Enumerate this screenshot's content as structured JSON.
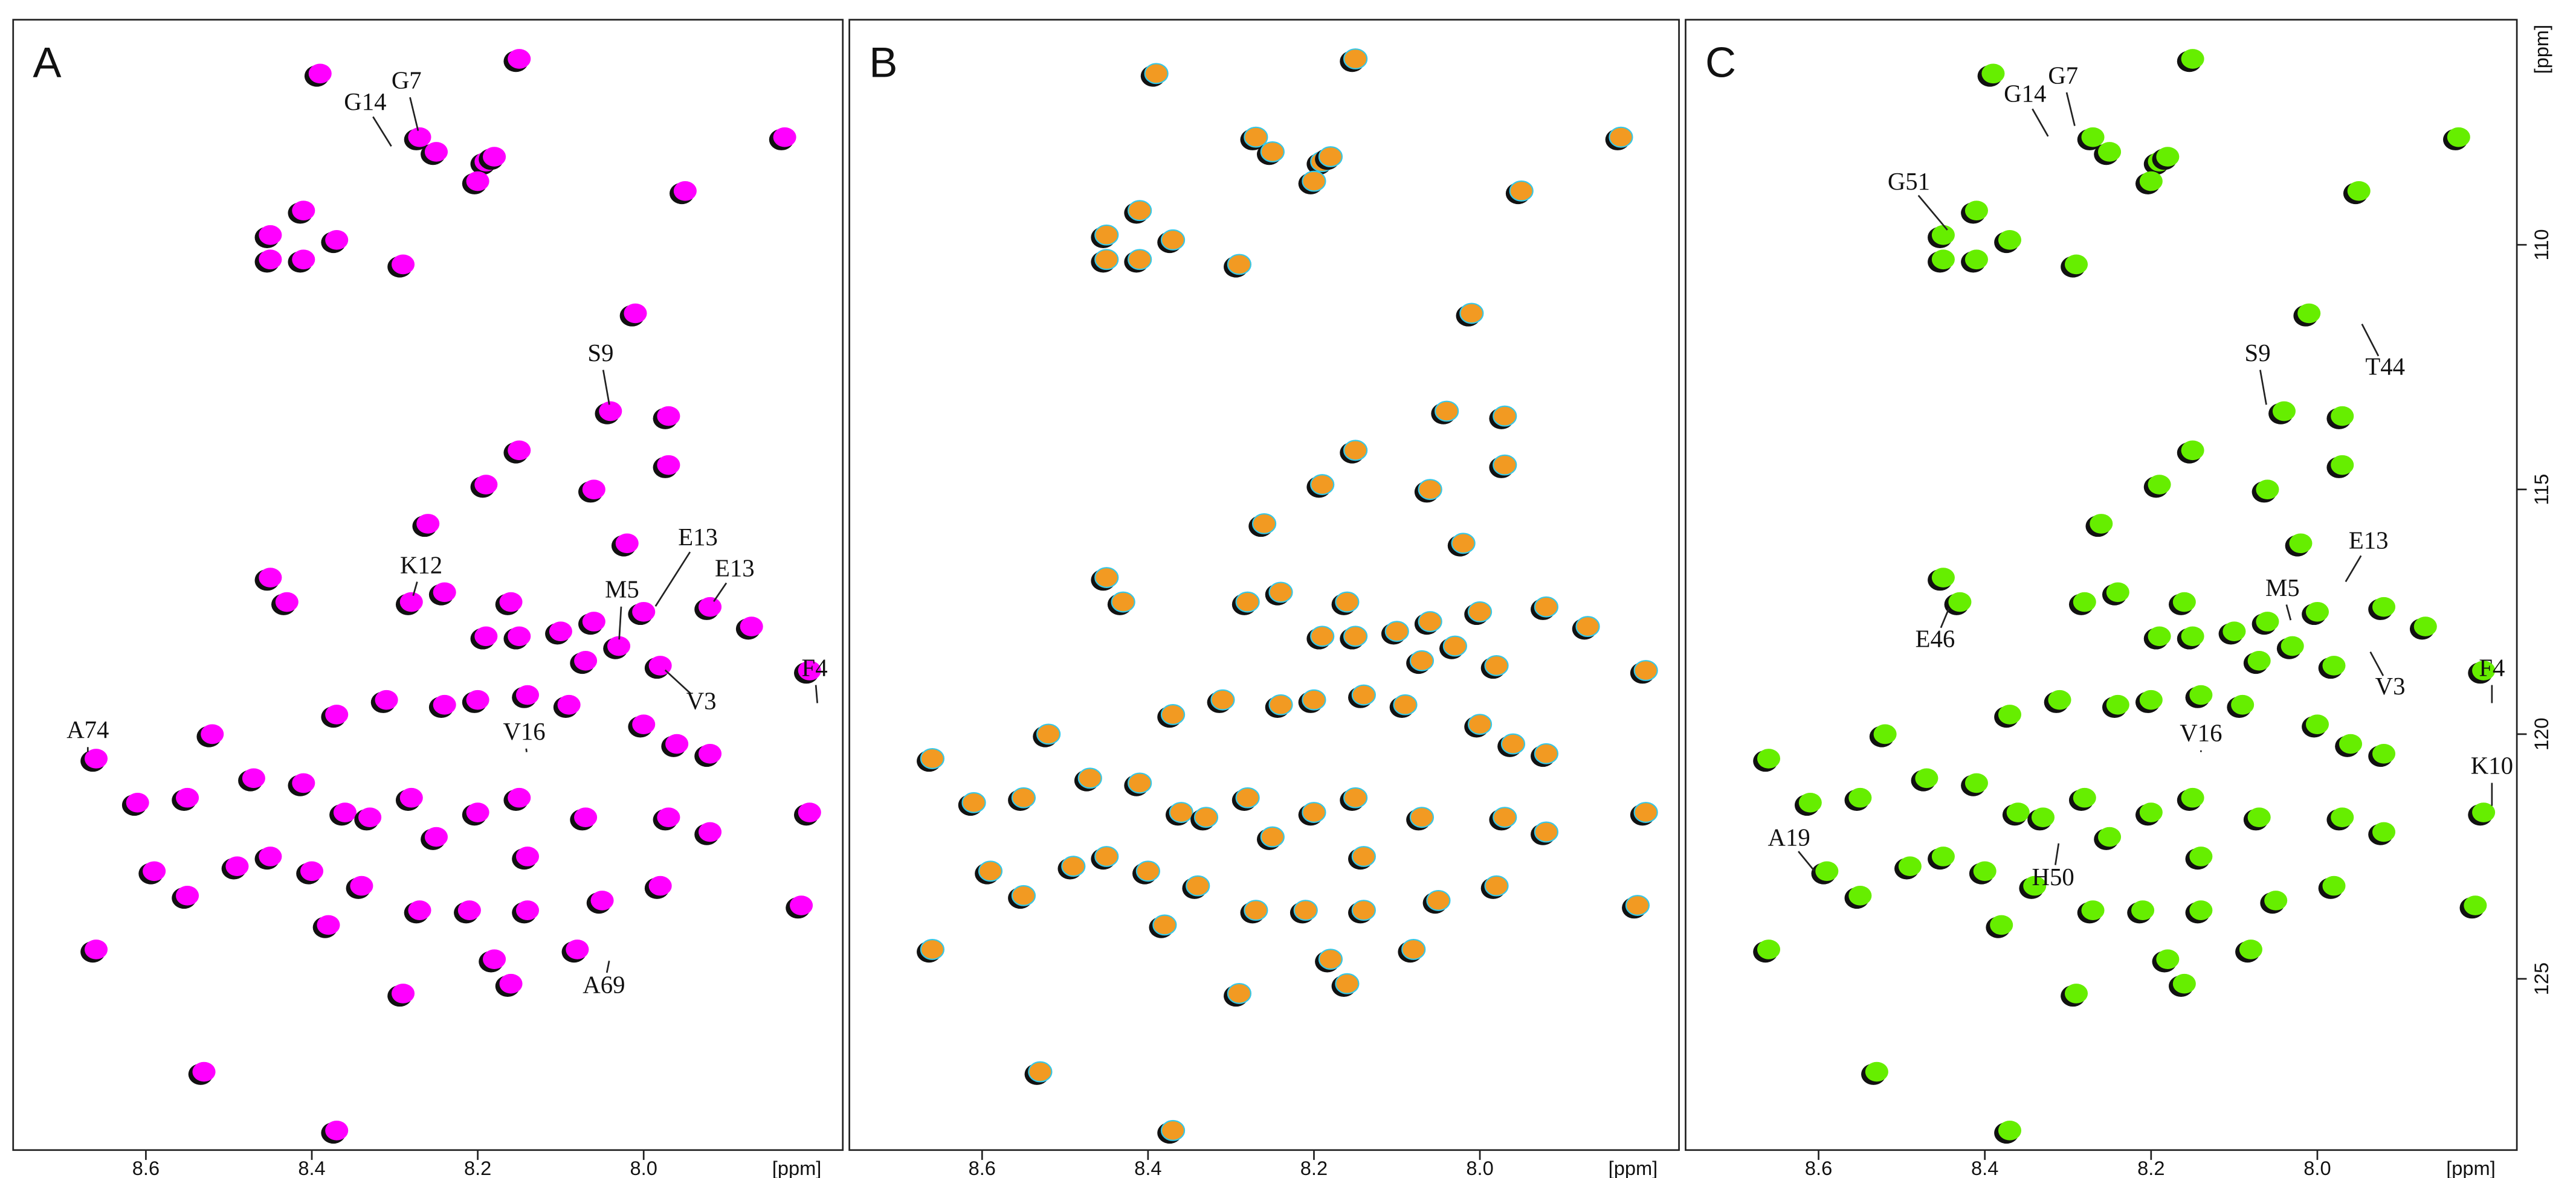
{
  "chart_data": [
    {
      "type": "scatter",
      "title": "A",
      "xlabel": "[ppm]",
      "color": "#ff00ff",
      "xlim": [
        8.76,
        7.76
      ],
      "ylim": [
        105.4,
        128.5
      ],
      "xticks": [
        8.6,
        8.4,
        8.2,
        {
          "value": 8,
          "label": "8.0"
        }
      ],
      "x": [
        8.39,
        8.15,
        8.27,
        8.25,
        8.19,
        8.18,
        8.2,
        7.83,
        8.45,
        8.41,
        8.37,
        8.45,
        8.41,
        8.29,
        7.95,
        8.01,
        8.04,
        7.97,
        7.97,
        8.15,
        8.26,
        8.19,
        8.06,
        8.02,
        8.45,
        8.43,
        8.28,
        8.24,
        8.16,
        8.19,
        8.15,
        8.1,
        8.06,
        8.0,
        7.92,
        7.87,
        7.8,
        8.37,
        8.31,
        8.24,
        8.2,
        8.14,
        8.09,
        8.07,
        8.03,
        7.98,
        8.52,
        8.47,
        8.41,
        8.36,
        8.33,
        8.28,
        8.25,
        8.2,
        8.15,
        8.14,
        8.07,
        7.97,
        7.92,
        8.61,
        8.55,
        8.59,
        8.55,
        8.49,
        8.45,
        8.4,
        8.34,
        8.38,
        8.27,
        8.21,
        8.14,
        8.05,
        7.98,
        7.92,
        7.81,
        8.66,
        8.18,
        8.16,
        8.08,
        8.29,
        8.53,
        8.37,
        7.8,
        8.66,
        7.96,
        8.0
      ],
      "y": [
        106.5,
        106.2,
        107.8,
        108.1,
        108.3,
        108.2,
        108.7,
        107.8,
        109.8,
        109.3,
        109.9,
        110.3,
        110.3,
        110.4,
        108.9,
        111.4,
        113.4,
        113.5,
        114.5,
        114.2,
        115.7,
        114.9,
        115.0,
        116.1,
        116.8,
        117.3,
        117.3,
        117.1,
        117.3,
        118.0,
        118.0,
        117.9,
        117.7,
        117.5,
        117.4,
        117.8,
        118.7,
        119.6,
        119.3,
        119.4,
        119.3,
        119.2,
        119.4,
        118.5,
        118.2,
        118.6,
        120.0,
        120.9,
        121.0,
        121.6,
        121.7,
        121.3,
        122.1,
        121.6,
        121.3,
        122.5,
        121.7,
        121.7,
        120.4,
        121.4,
        121.3,
        122.8,
        123.3,
        122.7,
        122.5,
        122.8,
        123.1,
        123.9,
        123.6,
        123.6,
        123.6,
        123.4,
        123.1,
        122.0,
        123.5,
        124.4,
        124.6,
        125.1,
        124.4,
        125.3,
        126.9,
        128.1,
        121.6,
        120.5,
        120.2,
        119.8
      ],
      "annotations": [
        {
          "text": "G14",
          "x": 8.3,
          "y": 108.1
        },
        {
          "text": "G7",
          "x": 8.27,
          "y": 107.8
        },
        {
          "text": "S9",
          "x": 8.04,
          "y": 113.4
        },
        {
          "text": "K12",
          "x": 8.28,
          "y": 117.3
        },
        {
          "text": "E13",
          "x": 7.99,
          "y": 117.5
        },
        {
          "text": "E13",
          "x": 7.92,
          "y": 117.4
        },
        {
          "text": "M5",
          "x": 8.03,
          "y": 118.2
        },
        {
          "text": "V3",
          "x": 7.98,
          "y": 118.6
        },
        {
          "text": "F4",
          "x": 7.79,
          "y": 119.5
        },
        {
          "text": "V16",
          "x": 8.14,
          "y": 120.5
        },
        {
          "text": "A74",
          "x": 8.67,
          "y": 120.5
        },
        {
          "text": "A69",
          "x": 8.04,
          "y": 124.5
        }
      ]
    },
    {
      "type": "scatter",
      "title": "B",
      "xlabel": "[ppm]",
      "color": "#f29a22",
      "xlim": [
        8.76,
        7.76
      ],
      "ylim": [
        105.4,
        128.5
      ],
      "xticks": [
        8.6,
        8.4,
        8.2,
        {
          "value": 8,
          "label": "8.0"
        }
      ],
      "x": [
        8.39,
        8.15,
        8.27,
        8.25,
        8.19,
        8.18,
        8.2,
        7.83,
        8.45,
        8.41,
        8.37,
        8.45,
        8.41,
        8.29,
        7.95,
        8.01,
        8.04,
        7.97,
        7.97,
        8.15,
        8.26,
        8.19,
        8.06,
        8.02,
        8.45,
        8.43,
        8.28,
        8.24,
        8.16,
        8.19,
        8.15,
        8.1,
        8.06,
        8.0,
        7.92,
        7.87,
        7.8,
        8.37,
        8.31,
        8.24,
        8.2,
        8.14,
        8.09,
        8.07,
        8.03,
        7.98,
        8.52,
        8.47,
        8.41,
        8.36,
        8.33,
        8.28,
        8.25,
        8.2,
        8.15,
        8.14,
        8.07,
        7.97,
        7.92,
        8.61,
        8.55,
        8.59,
        8.55,
        8.49,
        8.45,
        8.4,
        8.34,
        8.38,
        8.27,
        8.21,
        8.14,
        8.05,
        7.98,
        7.92,
        7.81,
        8.66,
        8.18,
        8.16,
        8.08,
        8.29,
        8.53,
        8.37,
        7.8,
        8.66,
        7.96,
        8.0
      ],
      "y": [
        106.5,
        106.2,
        107.8,
        108.1,
        108.3,
        108.2,
        108.7,
        107.8,
        109.8,
        109.3,
        109.9,
        110.3,
        110.3,
        110.4,
        108.9,
        111.4,
        113.4,
        113.5,
        114.5,
        114.2,
        115.7,
        114.9,
        115.0,
        116.1,
        116.8,
        117.3,
        117.3,
        117.1,
        117.3,
        118.0,
        118.0,
        117.9,
        117.7,
        117.5,
        117.4,
        117.8,
        118.7,
        119.6,
        119.3,
        119.4,
        119.3,
        119.2,
        119.4,
        118.5,
        118.2,
        118.6,
        120.0,
        120.9,
        121.0,
        121.6,
        121.7,
        121.3,
        122.1,
        121.6,
        121.3,
        122.5,
        121.7,
        121.7,
        120.4,
        121.4,
        121.3,
        122.8,
        123.3,
        122.7,
        122.5,
        122.8,
        123.1,
        123.9,
        123.6,
        123.6,
        123.6,
        123.4,
        123.1,
        122.0,
        123.5,
        124.4,
        124.6,
        125.1,
        124.4,
        125.3,
        126.9,
        128.1,
        121.6,
        120.5,
        120.2,
        119.8
      ]
    },
    {
      "type": "scatter",
      "title": "C",
      "xlabel": "[ppm]",
      "ylabel": "[ppm]",
      "color": "#66ee00",
      "xlim": [
        8.76,
        7.76
      ],
      "ylim": [
        105.4,
        128.5
      ],
      "xticks": [
        8.6,
        8.4,
        8.2,
        {
          "value": 8,
          "label": "8.0"
        }
      ],
      "yticks": [
        110,
        115,
        120,
        125
      ],
      "x": [
        8.39,
        8.15,
        8.27,
        8.25,
        8.19,
        8.18,
        8.2,
        7.83,
        8.45,
        8.41,
        8.37,
        8.45,
        8.41,
        8.29,
        7.95,
        8.01,
        8.04,
        7.97,
        7.97,
        8.15,
        8.26,
        8.19,
        8.06,
        8.02,
        8.45,
        8.43,
        8.28,
        8.24,
        8.16,
        8.19,
        8.15,
        8.1,
        8.06,
        8.0,
        7.92,
        7.87,
        7.8,
        8.37,
        8.31,
        8.24,
        8.2,
        8.14,
        8.09,
        8.07,
        8.03,
        7.98,
        8.52,
        8.47,
        8.41,
        8.36,
        8.33,
        8.28,
        8.25,
        8.2,
        8.15,
        8.14,
        8.07,
        7.97,
        7.92,
        8.61,
        8.55,
        8.59,
        8.55,
        8.49,
        8.45,
        8.4,
        8.34,
        8.38,
        8.27,
        8.21,
        8.14,
        8.05,
        7.98,
        7.92,
        7.81,
        8.66,
        8.18,
        8.16,
        8.08,
        8.29,
        8.53,
        8.37,
        7.8,
        8.66,
        7.96,
        8.0
      ],
      "y": [
        106.5,
        106.2,
        107.8,
        108.1,
        108.3,
        108.2,
        108.7,
        107.8,
        109.8,
        109.3,
        109.9,
        110.3,
        110.3,
        110.4,
        108.9,
        111.4,
        113.4,
        113.5,
        114.5,
        114.2,
        115.7,
        114.9,
        115.0,
        116.1,
        116.8,
        117.3,
        117.3,
        117.1,
        117.3,
        118.0,
        118.0,
        117.9,
        117.7,
        117.5,
        117.4,
        117.8,
        118.7,
        119.6,
        119.3,
        119.4,
        119.3,
        119.2,
        119.4,
        118.5,
        118.2,
        118.6,
        120.0,
        120.9,
        121.0,
        121.6,
        121.7,
        121.3,
        122.1,
        121.6,
        121.3,
        122.5,
        121.7,
        121.7,
        120.4,
        121.4,
        121.3,
        122.8,
        123.3,
        122.7,
        122.5,
        122.8,
        123.1,
        123.9,
        123.6,
        123.6,
        123.6,
        123.4,
        123.1,
        122.0,
        123.5,
        124.4,
        124.6,
        125.1,
        124.4,
        125.3,
        126.9,
        128.1,
        121.6,
        120.5,
        120.2,
        119.8
      ],
      "annotations": [
        {
          "text": "G14",
          "x": 8.32,
          "y": 107.9
        },
        {
          "text": "G7",
          "x": 8.29,
          "y": 107.7
        },
        {
          "text": "G51",
          "x": 8.44,
          "y": 109.8
        },
        {
          "text": "S9",
          "x": 8.06,
          "y": 113.4
        },
        {
          "text": "T44",
          "x": 7.95,
          "y": 111.5
        },
        {
          "text": "E13",
          "x": 7.97,
          "y": 117.0
        },
        {
          "text": "M5",
          "x": 8.03,
          "y": 117.8
        },
        {
          "text": "V3",
          "x": 7.94,
          "y": 118.2
        },
        {
          "text": "F4",
          "x": 7.79,
          "y": 119.5
        },
        {
          "text": "K10",
          "x": 7.79,
          "y": 121.6
        },
        {
          "text": "V16",
          "x": 8.14,
          "y": 120.5
        },
        {
          "text": "E46",
          "x": 8.44,
          "y": 117.3
        },
        {
          "text": "A19",
          "x": 8.6,
          "y": 122.9
        },
        {
          "text": "H50",
          "x": 8.31,
          "y": 122.1
        }
      ]
    }
  ]
}
